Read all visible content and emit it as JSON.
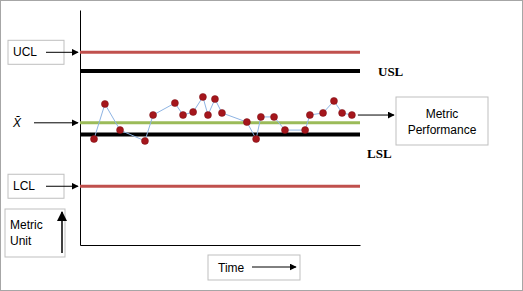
{
  "chart_data": {
    "type": "line",
    "x_label": "Time",
    "y_label": "Metric Unit",
    "xlim": [
      0,
      100
    ],
    "ylim": [
      0,
      100
    ],
    "tick_labels": false,
    "series": [
      {
        "name": "Metric Performance",
        "color": "#8eb4e3",
        "marker": "circle",
        "x": [
          5,
          8.9,
          14.3,
          23.2,
          26.1,
          33.9,
          36.8,
          40.4,
          43.9,
          45.7,
          48.2,
          50.7,
          59.6,
          62.9,
          64.6,
          69.3,
          73.2,
          80.4,
          82.1,
          86.8,
          90.7,
          93.6,
          97.1
        ],
        "values": [
          45.1,
          60,
          48.9,
          44.3,
          55.3,
          60.4,
          55.3,
          56.6,
          63,
          55.3,
          62.1,
          56.2,
          52.3,
          45.1,
          54.5,
          54.5,
          48.9,
          48.9,
          55.3,
          56.2,
          61.3,
          56.2,
          55.3
        ]
      }
    ],
    "reference_lines": [
      {
        "label": "UCL",
        "value": 82,
        "color": "#c0504d"
      },
      {
        "label": "USL",
        "value": 74,
        "color": "#000000"
      },
      {
        "label": "X̄",
        "value": 52,
        "color": "#9bbb59"
      },
      {
        "label": "LSL",
        "value": 47,
        "color": "#000000"
      },
      {
        "label": "LCL",
        "value": 25,
        "color": "#c0504d"
      }
    ]
  }
}
